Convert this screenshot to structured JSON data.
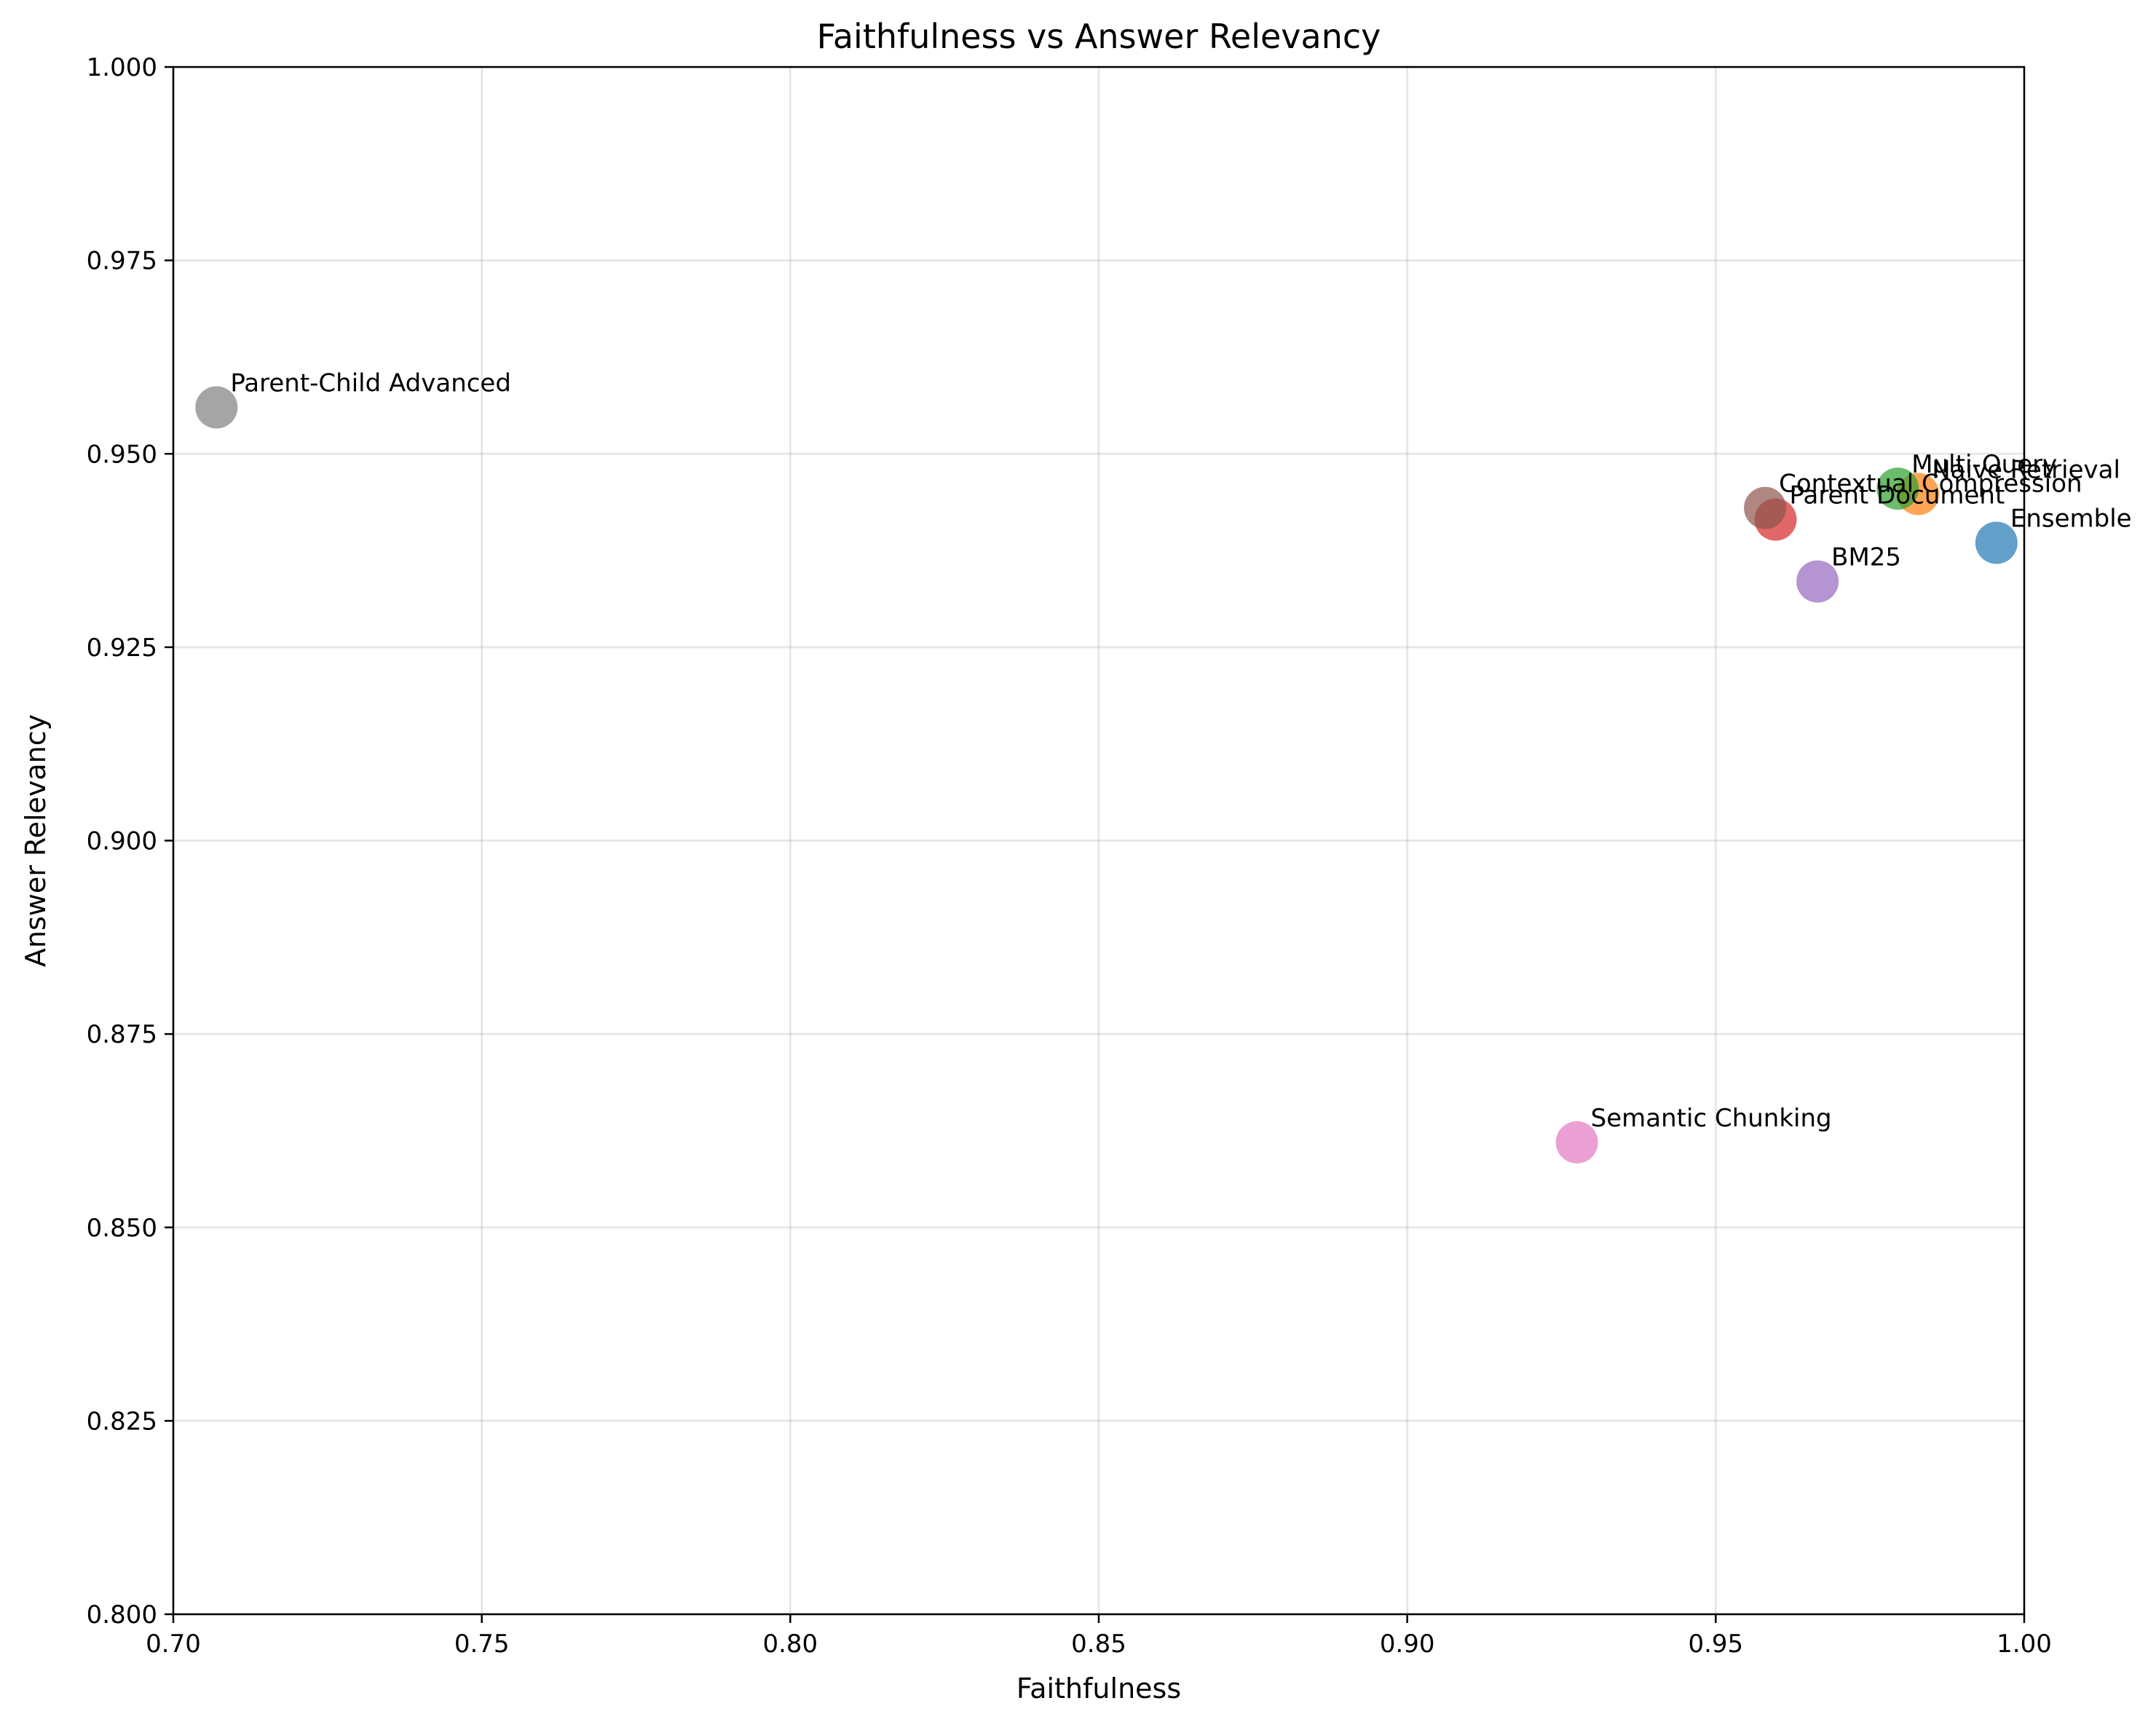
{
  "chart_data": {
    "type": "scatter",
    "title": "Faithfulness vs Answer Relevancy",
    "xlabel": "Faithfulness",
    "ylabel": "Answer Relevancy",
    "xlim": [
      0.7,
      1.0
    ],
    "ylim": [
      0.8,
      1.0
    ],
    "xticks": [
      "0.70",
      "0.75",
      "0.80",
      "0.85",
      "0.90",
      "0.95",
      "1.00"
    ],
    "yticks": [
      "0.800",
      "0.825",
      "0.850",
      "0.875",
      "0.900",
      "0.925",
      "0.950",
      "0.975",
      "1.000"
    ],
    "grid": true,
    "legend": "none",
    "points": [
      {
        "label": "Ensemble",
        "x": 0.9955,
        "y": 0.9385,
        "color": "#1f77b4"
      },
      {
        "label": "Naive Retrieval",
        "x": 0.9828,
        "y": 0.9448,
        "color": "#ff7f0e"
      },
      {
        "label": "Multi-Query",
        "x": 0.9795,
        "y": 0.9455,
        "color": "#2ca02c"
      },
      {
        "label": "Parent Document",
        "x": 0.9597,
        "y": 0.9415,
        "color": "#d62728"
      },
      {
        "label": "BM25",
        "x": 0.9665,
        "y": 0.9335,
        "color": "#9467bd"
      },
      {
        "label": "Contextual Compression",
        "x": 0.958,
        "y": 0.943,
        "color": "#8c564b"
      },
      {
        "label": "Semantic Chunking",
        "x": 0.9275,
        "y": 0.861,
        "color": "#e377c2"
      },
      {
        "label": "Parent-Child Advanced",
        "x": 0.707,
        "y": 0.956,
        "color": "#7f7f7f"
      }
    ]
  }
}
